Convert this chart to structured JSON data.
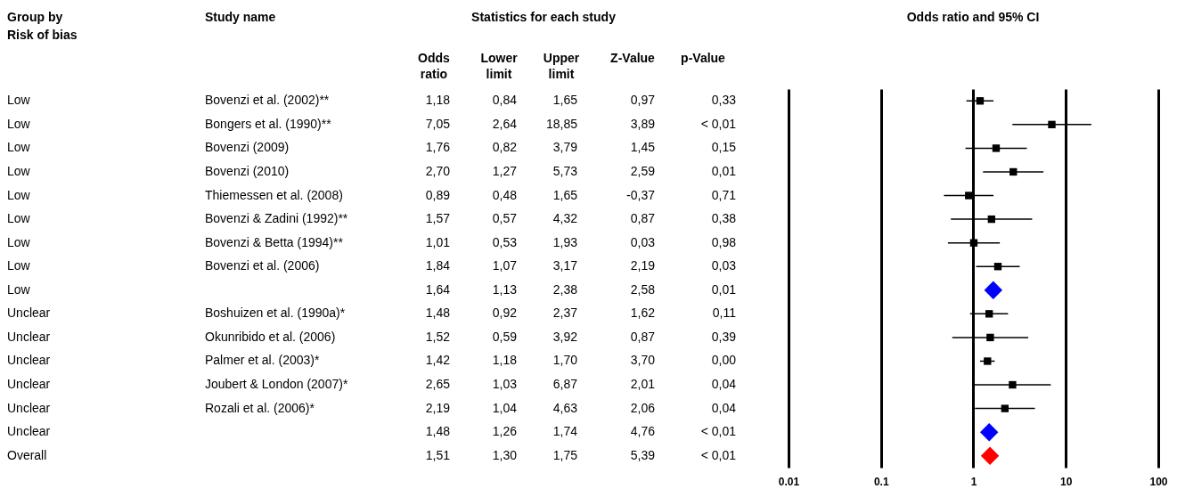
{
  "chart_data": [
    {
      "type": "other",
      "title": "Statistics for each study",
      "subtitle": "Risk of bias",
      "categories": [
        "Group by",
        "Odds ratio",
        "Lower limit",
        "Upper limit",
        "Z-Value",
        "p-Value"
      ],
      "ylabel": "Study name",
      "y_categories": [
        "Bovenzi et al. (2002)**",
        "Bongers et al. (1990)**",
        "Bovenzi (2009)",
        "Bovenzi (2010)",
        "Thiemessen et al. (2008)",
        "Bovenzi & Zadini (1992)**",
        "Bovenzi & Betta (1994)**",
        "Bovenzi et al. (2006)",
        null,
        "Boshuizen et al. (1990a)*",
        "Okunribido et al. (2006)",
        "Palmer et al. (2003)*",
        "Joubert & London (2007)*",
        "Rozali et al. (2006)*",
        null,
        null
      ],
      "annotations": [
        "Low",
        "1,18",
        "0,84",
        "1,65",
        "0,97",
        "0,33",
        "Low",
        "7,05",
        "2,64",
        "18,85",
        "3,89",
        "< 0,01",
        "Low",
        "1,76",
        "0,82",
        "3,79",
        "1,45",
        "0,15",
        "Low",
        "2,70",
        "1,27",
        "5,73",
        "2,59",
        "0,01",
        "Low",
        "0,89",
        "0,48",
        "1,65",
        "-0,37",
        "0,71",
        "Low",
        "1,57",
        "0,57",
        "4,32",
        "0,87",
        "0,38",
        "Low",
        "1,01",
        "0,53",
        "1,93",
        "0,03",
        "0,98",
        "Low",
        "1,84",
        "1,07",
        "3,17",
        "2,19",
        "0,03",
        "Low",
        "1,64",
        "1,13",
        "2,38",
        "2,58",
        "0,01",
        "Unclear",
        "1,48",
        "0,92",
        "2,37",
        "1,62",
        "0,11",
        "Unclear",
        "1,52",
        "0,59",
        "3,92",
        "0,87",
        "0,39",
        "Unclear",
        "1,42",
        "1,18",
        "1,70",
        "3,70",
        "0,00",
        "Unclear",
        "2,65",
        "1,03",
        "6,87",
        "2,01",
        "0,04",
        "Unclear",
        "2,19",
        "1,04",
        "4,63",
        "2,06",
        "0,04",
        "Unclear",
        "1,48",
        "1,26",
        "1,74",
        "4,76",
        "< 0,01",
        "Overall",
        "1,51",
        "1,30",
        "1,75",
        "5,39",
        "< 0,01"
      ]
    },
    {
      "type": "scatter",
      "title": "Odds ratio and 95% CI",
      "orientation": "horizontal",
      "log": "x",
      "grid": "x",
      "marker": "square",
      "tick_labels": "x",
      "categories": [
        null,
        null,
        null,
        null,
        null,
        null,
        null,
        null,
        null,
        null,
        null,
        null,
        null,
        null,
        null,
        null
      ],
      "xlim": [
        0.01,
        100
      ],
      "xticks": [
        0.01,
        0.1,
        1,
        10,
        100
      ],
      "series": [
        {
          "color": "#000000",
          "values": [
            1.18,
            7.05,
            1.76,
            2.7,
            0.89,
            1.57,
            1.01,
            1.84,
            null,
            1.48,
            1.52,
            1.42,
            2.65,
            2.19,
            null,
            null
          ],
          "errors": [
            [
              0.84,
              1.65
            ],
            [
              2.64,
              18.85
            ],
            [
              0.82,
              3.79
            ],
            [
              1.27,
              5.73
            ],
            [
              0.48,
              1.65
            ],
            [
              0.57,
              4.32
            ],
            [
              0.53,
              1.93
            ],
            [
              1.07,
              3.17
            ],
            null,
            [
              0.92,
              2.37
            ],
            [
              0.59,
              3.92
            ],
            [
              1.18,
              1.7
            ],
            [
              1.03,
              6.87
            ],
            [
              1.04,
              4.63
            ],
            null,
            null
          ]
        },
        {
          "color": "#0000ff",
          "marker": "diamond",
          "values": [
            null,
            null,
            null,
            null,
            null,
            null,
            null,
            null,
            1.64,
            null,
            null,
            null,
            null,
            null,
            1.48,
            null
          ]
        },
        {
          "color": "#ff0000",
          "marker": "diamond",
          "values": [
            null,
            null,
            null,
            null,
            null,
            null,
            null,
            null,
            null,
            null,
            null,
            null,
            null,
            null,
            null,
            1.51
          ]
        }
      ]
    }
  ]
}
